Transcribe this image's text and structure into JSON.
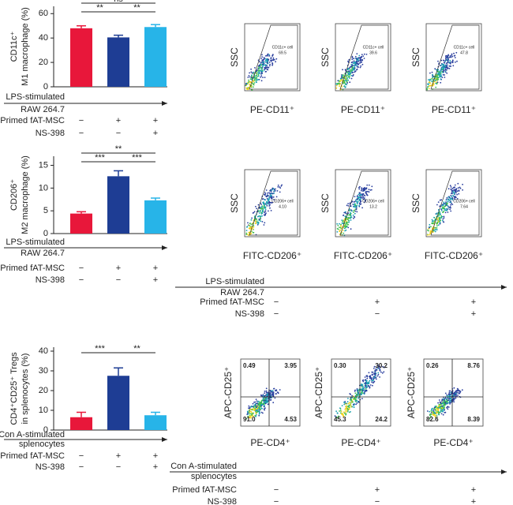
{
  "chart_data": [
    {
      "type": "bar",
      "y_label": [
        "CD11c⁺",
        "M1 macrophage (%)"
      ],
      "categories": [
        null,
        null,
        null
      ],
      "values": [
        48,
        40.5,
        49
      ],
      "errors": [
        2,
        1.8,
        2
      ],
      "colors": [
        "#e8173a",
        "#1e3d94",
        "#27b4e8"
      ],
      "ylim": [
        0,
        66
      ],
      "yticks": [
        0,
        20,
        40,
        60
      ],
      "annotations": [
        {
          "text": "**",
          "from": 0,
          "to": 1
        },
        {
          "text": "**",
          "from": 1,
          "to": 2
        },
        {
          "text": "ns",
          "from": 0,
          "to": 2
        }
      ],
      "conditions": {
        "stimulus": [
          "LPS-stimulated",
          "RAW 264.7"
        ],
        "rows": [
          {
            "label": "Primed fAT-MSC",
            "signs": [
              "−",
              "+",
              "+"
            ]
          },
          {
            "label": "NS-398",
            "signs": [
              "−",
              "−",
              "+"
            ]
          }
        ]
      }
    },
    {
      "type": "bar",
      "y_label": [
        "CD206⁺",
        "M2 macrophage (%)"
      ],
      "categories": [
        null,
        null,
        null
      ],
      "values": [
        4.4,
        12.6,
        7.3
      ],
      "errors": [
        0.4,
        1.2,
        0.5
      ],
      "colors": [
        "#e8173a",
        "#1e3d94",
        "#27b4e8"
      ],
      "ylim": [
        0,
        17
      ],
      "yticks": [
        0,
        5,
        10,
        15
      ],
      "annotations": [
        {
          "text": "***",
          "from": 0,
          "to": 1
        },
        {
          "text": "***",
          "from": 1,
          "to": 2
        },
        {
          "text": "**",
          "from": 0,
          "to": 2
        }
      ],
      "conditions": {
        "stimulus": [
          "LPS-stimulated",
          "RAW 264.7"
        ],
        "rows": [
          {
            "label": "Primed fAT-MSC",
            "signs": [
              "−",
              "+",
              "+"
            ]
          },
          {
            "label": "NS-398",
            "signs": [
              "−",
              "−",
              "+"
            ]
          }
        ]
      }
    },
    {
      "type": "bar",
      "y_label": [
        "CD4⁺CD25⁺ Tregs",
        "in splenocytes (%)"
      ],
      "categories": [
        null,
        null,
        null
      ],
      "values": [
        6.5,
        27.5,
        7.5
      ],
      "errors": [
        2.5,
        4,
        1.5
      ],
      "colors": [
        "#e8173a",
        "#1e3d94",
        "#27b4e8"
      ],
      "ylim": [
        0,
        42
      ],
      "yticks": [
        0,
        10,
        20,
        30,
        40
      ],
      "annotations": [
        {
          "text": "***",
          "from": 0,
          "to": 1
        },
        {
          "text": "**",
          "from": 1,
          "to": 2
        }
      ],
      "conditions": {
        "stimulus": [
          "Con A-stimulated",
          "splenocytes"
        ],
        "rows": [
          {
            "label": "Primed fAT-MSC",
            "signs": [
              "−",
              "+",
              "+"
            ]
          },
          {
            "label": "NS-398",
            "signs": [
              "−",
              "−",
              "+"
            ]
          }
        ]
      }
    }
  ],
  "flow_rows": [
    {
      "y_label": "SSC",
      "x_label": "PE-CD11⁺",
      "gate_label": "CD11c+ cell",
      "values": [
        "69.5",
        "39.6",
        "47.8"
      ]
    },
    {
      "y_label": "SSC",
      "x_label": "FITC-CD206⁺",
      "gate_label": "CD206+ cell",
      "values": [
        "4.10",
        "13.2",
        "7.64"
      ]
    }
  ],
  "quadrant_row": {
    "y_label": "APC-CD25⁺",
    "x_label": "PE-CD4⁺",
    "panels": [
      [
        "0.49",
        "3.95",
        "91.0",
        "4.53"
      ],
      [
        "0.30",
        "30.2",
        "45.3",
        "24.2"
      ],
      [
        "0.26",
        "8.76",
        "82.6",
        "8.39"
      ]
    ]
  },
  "flow_conditions": [
    {
      "stimulus": [
        "LPS-stimulated",
        "RAW 264.7"
      ],
      "rows": [
        {
          "label": "Primed fAT-MSC",
          "signs": [
            "−",
            "+",
            "+"
          ]
        },
        {
          "label": "NS-398",
          "signs": [
            "−",
            "−",
            "+"
          ]
        }
      ]
    },
    {
      "stimulus": [
        "Con A-stimulated",
        "splenocytes"
      ],
      "rows": [
        {
          "label": "Primed fAT-MSC",
          "signs": [
            "−",
            "+",
            "+"
          ]
        },
        {
          "label": "NS-398",
          "signs": [
            "−",
            "−",
            "+"
          ]
        }
      ]
    }
  ]
}
